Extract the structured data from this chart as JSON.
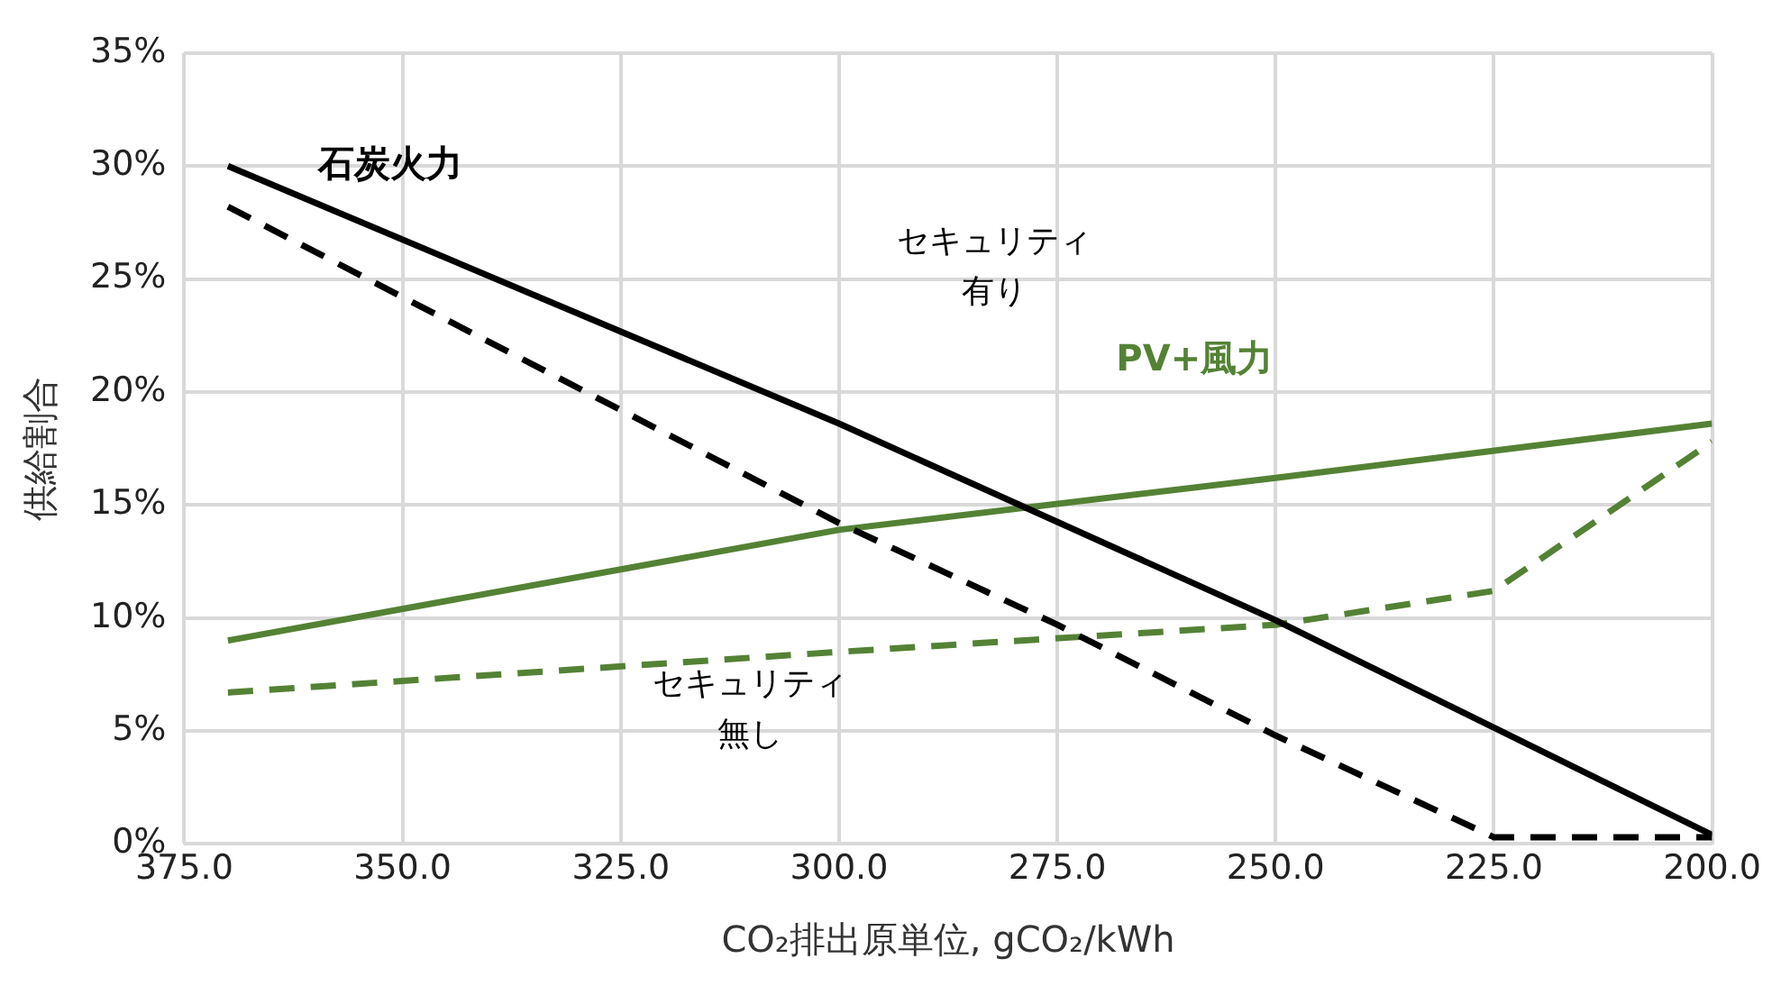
{
  "chart_data": {
    "type": "line",
    "xlabel": "CO₂排出原単位, gCO₂/kWh",
    "ylabel": "供給割合",
    "xlim": [
      375,
      200
    ],
    "xticks": [
      {
        "value": 375,
        "label": "375.0"
      },
      {
        "value": 350,
        "label": "350.0"
      },
      {
        "value": 325,
        "label": "325.0"
      },
      {
        "value": 300,
        "label": "300.0"
      },
      {
        "value": 275,
        "label": "275.0"
      },
      {
        "value": 250,
        "label": "250.0"
      },
      {
        "value": 225,
        "label": "225.0"
      },
      {
        "value": 200,
        "label": "200.0"
      }
    ],
    "ylim": [
      0,
      35
    ],
    "yticks": [
      {
        "value": 0,
        "label": "0%"
      },
      {
        "value": 5,
        "label": "5%"
      },
      {
        "value": 10,
        "label": "10%"
      },
      {
        "value": 15,
        "label": "15%"
      },
      {
        "value": 20,
        "label": "20%"
      },
      {
        "value": 25,
        "label": "25%"
      },
      {
        "value": 30,
        "label": "30%"
      },
      {
        "value": 35,
        "label": "35%"
      }
    ],
    "grid": true,
    "legend": false,
    "marker": "none",
    "series": [
      {
        "name": "石炭火力",
        "color": "#000000",
        "line_style": "solid",
        "x": [
          370,
          300,
          250,
          200
        ],
        "values": [
          30,
          18.6,
          9.9,
          0.4
        ]
      },
      {
        "color": "#000000",
        "line_style": "dashed",
        "x": [
          370,
          300,
          275,
          250,
          225,
          200
        ],
        "values": [
          28.2,
          14.2,
          9.7,
          4.8,
          0.3,
          0.3
        ]
      },
      {
        "name": "PV+風力",
        "color": "#548235",
        "line_style": "solid",
        "x": [
          370,
          300,
          250,
          200
        ],
        "values": [
          9,
          13.9,
          16.2,
          18.6
        ]
      },
      {
        "color": "#548235",
        "line_style": "dashed",
        "x": [
          370,
          300,
          250,
          225,
          200
        ],
        "values": [
          6.7,
          8.5,
          9.7,
          11.2,
          17.8
        ]
      }
    ],
    "annotations": [
      "セキュリティ有り",
      "セキュリティ無し"
    ]
  }
}
